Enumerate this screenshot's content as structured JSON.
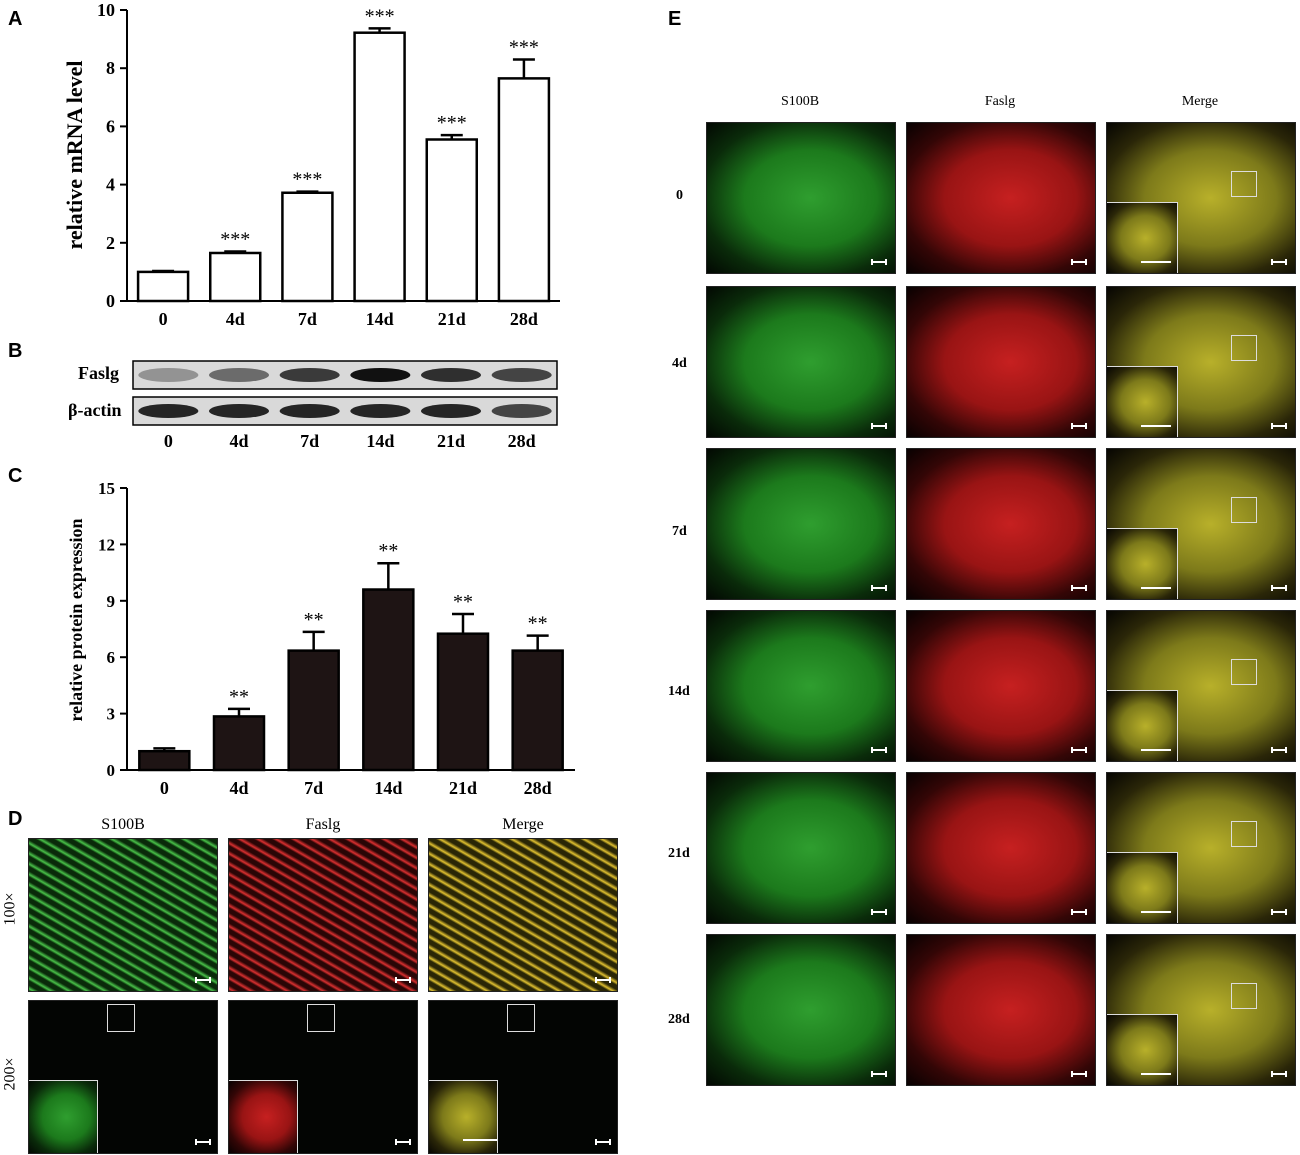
{
  "panel_letters": {
    "a": "A",
    "b": "B",
    "c": "C",
    "d": "D",
    "e": "E"
  },
  "chart_data": [
    {
      "type": "bar",
      "panel": "A",
      "categories": [
        "0",
        "4d",
        "7d",
        "14d",
        "21d",
        "28d"
      ],
      "values": [
        1.0,
        1.65,
        3.72,
        9.22,
        5.55,
        7.65
      ],
      "errors": [
        0.03,
        0.05,
        0.04,
        0.15,
        0.15,
        0.65
      ],
      "significance": [
        "",
        "***",
        "***",
        "***",
        "***",
        "***"
      ],
      "ylabel": "relative mRNA level",
      "ylim": [
        0,
        10
      ],
      "yticks": [
        "0",
        "2",
        "4",
        "6",
        "8",
        "10"
      ],
      "bar_color": "#ffffff"
    },
    {
      "type": "bar",
      "panel": "C",
      "categories": [
        "0",
        "4d",
        "7d",
        "14d",
        "21d",
        "28d"
      ],
      "values": [
        1.0,
        2.85,
        6.35,
        9.6,
        7.25,
        6.35
      ],
      "errors": [
        0.15,
        0.4,
        1.0,
        1.4,
        1.05,
        0.8
      ],
      "significance": [
        "",
        "**",
        "**",
        "**",
        "**",
        "**"
      ],
      "ylabel": "relative protein expression",
      "ylim": [
        0,
        15
      ],
      "yticks": [
        "0",
        "3",
        "6",
        "9",
        "12",
        "15"
      ],
      "bar_color": "#1e1414"
    }
  ],
  "blot": {
    "rows": [
      "Faslg",
      "β-actin"
    ],
    "lanes": [
      "0",
      "4d",
      "7d",
      "14d",
      "21d",
      "28d"
    ],
    "faslg_intensity": [
      0.35,
      0.55,
      0.8,
      1.0,
      0.85,
      0.75
    ],
    "actin_intensity": [
      0.9,
      0.9,
      0.9,
      0.9,
      0.9,
      0.75
    ]
  },
  "panel_d": {
    "columns": [
      "S100B",
      "Faslg",
      "Merge"
    ],
    "rows": [
      "100×",
      "200×"
    ]
  },
  "panel_e": {
    "columns": [
      "S100B",
      "Faslg",
      "Merge"
    ],
    "rows": [
      "0",
      "4d",
      "7d",
      "14d",
      "21d",
      "28d"
    ]
  }
}
